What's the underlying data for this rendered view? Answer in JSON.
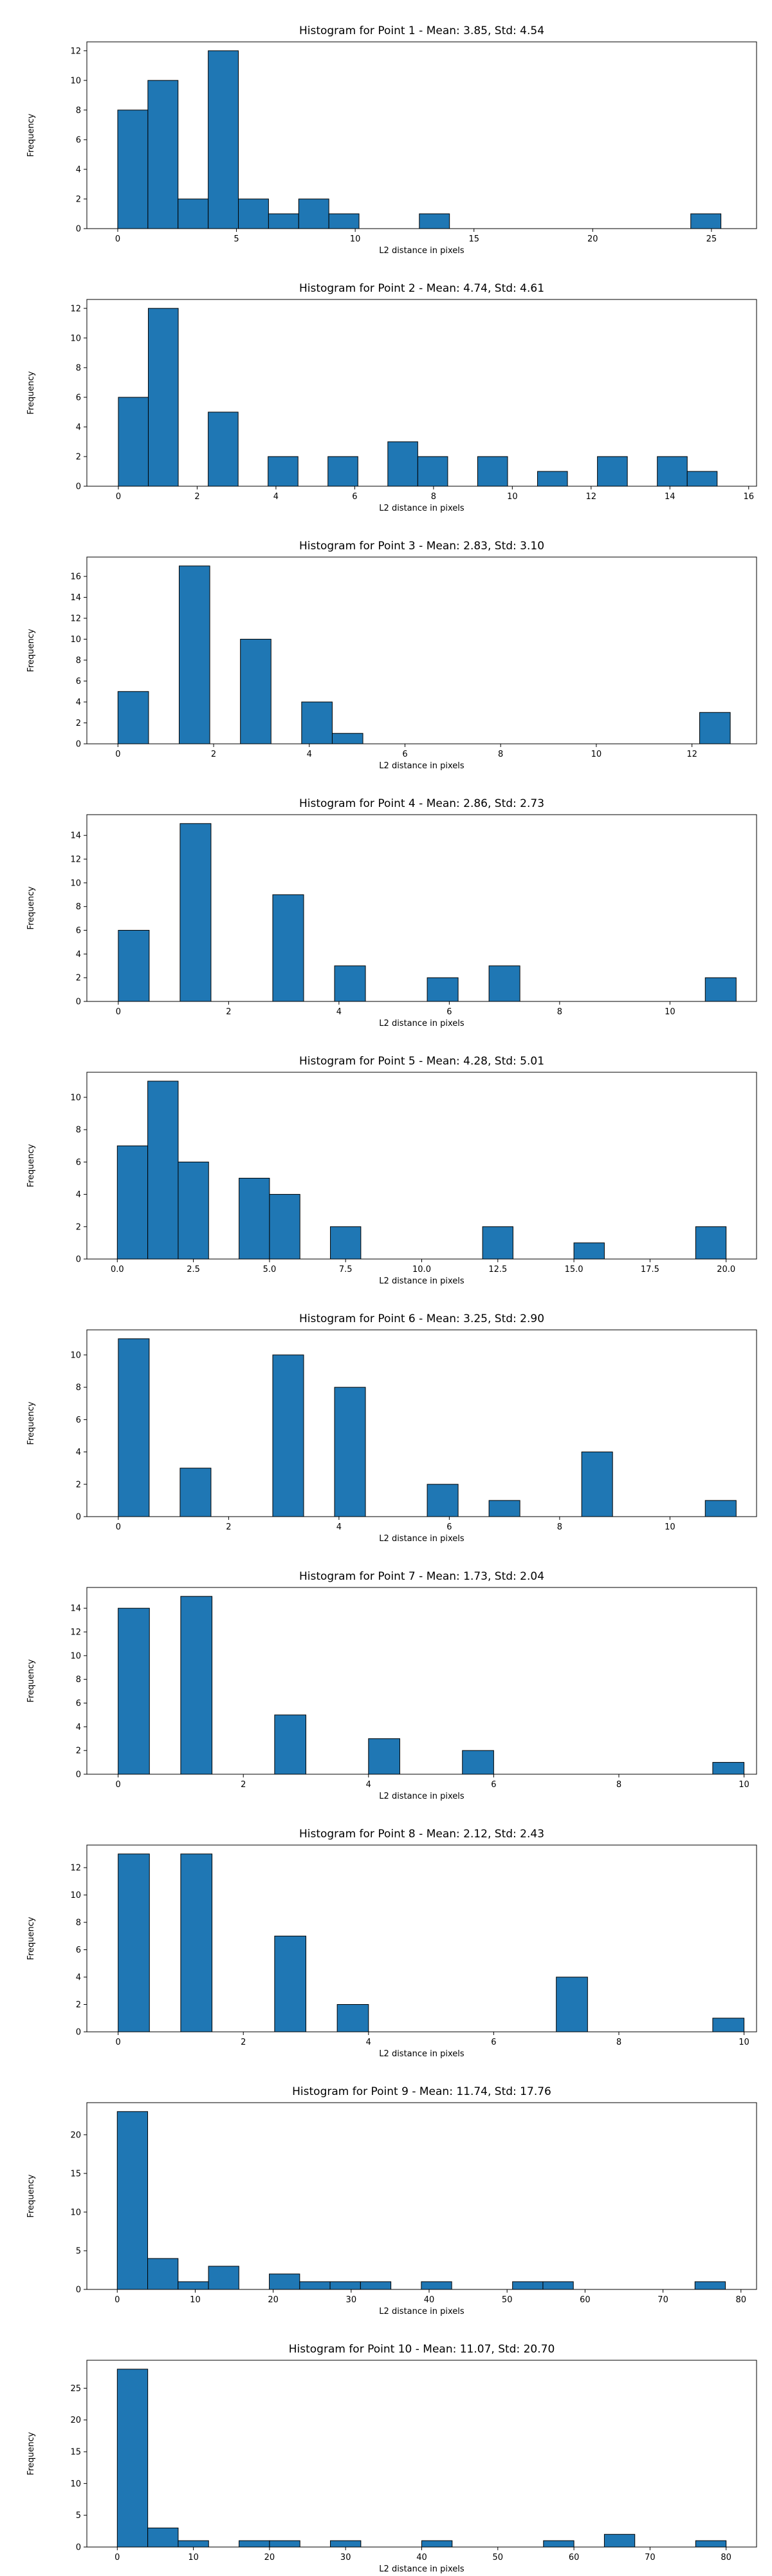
{
  "chart_data": [
    {
      "type": "bar",
      "title": "Histogram for Point 1 - Mean: 3.85, Std: 4.54",
      "xlabel": "L2 distance in pixels",
      "ylabel": "Frequency",
      "xlim": [
        -1.3,
        26.9
      ],
      "ylim": [
        0,
        12.6
      ],
      "xticks": [
        0,
        5,
        10,
        15,
        20,
        25
      ],
      "yticks": [
        0,
        2,
        4,
        6,
        8,
        10,
        12
      ],
      "bar_color": "#1f77b4",
      "bins": [
        {
          "x0": 0.0,
          "x1": 1.27,
          "count": 8
        },
        {
          "x0": 1.27,
          "x1": 2.54,
          "count": 10
        },
        {
          "x0": 2.54,
          "x1": 3.81,
          "count": 2
        },
        {
          "x0": 3.81,
          "x1": 5.08,
          "count": 12
        },
        {
          "x0": 5.08,
          "x1": 6.35,
          "count": 2
        },
        {
          "x0": 6.35,
          "x1": 7.62,
          "count": 1
        },
        {
          "x0": 7.62,
          "x1": 8.89,
          "count": 2
        },
        {
          "x0": 8.89,
          "x1": 10.16,
          "count": 1
        },
        {
          "x0": 12.7,
          "x1": 13.97,
          "count": 1
        },
        {
          "x0": 24.13,
          "x1": 25.4,
          "count": 1
        }
      ]
    },
    {
      "type": "bar",
      "title": "Histogram for Point 2 - Mean: 4.74, Std: 4.61",
      "xlabel": "L2 distance in pixels",
      "ylabel": "Frequency",
      "xlim": [
        -0.8,
        16.2
      ],
      "ylim": [
        0,
        12.6
      ],
      "xticks": [
        0,
        2,
        4,
        6,
        8,
        10,
        12,
        14,
        16
      ],
      "yticks": [
        0,
        2,
        4,
        6,
        8,
        10,
        12
      ],
      "bar_color": "#1f77b4",
      "bins": [
        {
          "x0": 0.0,
          "x1": 0.76,
          "count": 6
        },
        {
          "x0": 0.76,
          "x1": 1.52,
          "count": 12
        },
        {
          "x0": 2.28,
          "x1": 3.04,
          "count": 5
        },
        {
          "x0": 3.8,
          "x1": 4.56,
          "count": 2
        },
        {
          "x0": 5.32,
          "x1": 6.08,
          "count": 2
        },
        {
          "x0": 6.84,
          "x1": 7.6,
          "count": 3
        },
        {
          "x0": 7.6,
          "x1": 8.36,
          "count": 2
        },
        {
          "x0": 9.12,
          "x1": 9.88,
          "count": 2
        },
        {
          "x0": 10.64,
          "x1": 11.4,
          "count": 1
        },
        {
          "x0": 12.16,
          "x1": 12.92,
          "count": 2
        },
        {
          "x0": 13.68,
          "x1": 14.44,
          "count": 2
        },
        {
          "x0": 14.44,
          "x1": 15.2,
          "count": 1
        }
      ]
    },
    {
      "type": "bar",
      "title": "Histogram for Point 3 - Mean: 2.83, Std: 3.10",
      "xlabel": "L2 distance in pixels",
      "ylabel": "Frequency",
      "xlim": [
        -0.65,
        13.35
      ],
      "ylim": [
        0,
        17.85
      ],
      "xticks": [
        0,
        2,
        4,
        6,
        8,
        10,
        12
      ],
      "yticks": [
        0,
        2,
        4,
        6,
        8,
        10,
        12,
        14,
        16
      ],
      "bar_color": "#1f77b4",
      "bins": [
        {
          "x0": 0.0,
          "x1": 0.64,
          "count": 5
        },
        {
          "x0": 1.28,
          "x1": 1.92,
          "count": 17
        },
        {
          "x0": 2.56,
          "x1": 3.2,
          "count": 10
        },
        {
          "x0": 3.84,
          "x1": 4.48,
          "count": 4
        },
        {
          "x0": 4.48,
          "x1": 5.12,
          "count": 1
        },
        {
          "x0": 12.16,
          "x1": 12.8,
          "count": 3
        }
      ]
    },
    {
      "type": "bar",
      "title": "Histogram for Point 4 - Mean: 2.86, Std: 2.73",
      "xlabel": "L2 distance in pixels",
      "ylabel": "Frequency",
      "xlim": [
        -0.57,
        11.57
      ],
      "ylim": [
        0,
        15.75
      ],
      "xticks": [
        0,
        2,
        4,
        6,
        8,
        10
      ],
      "yticks": [
        0,
        2,
        4,
        6,
        8,
        10,
        12,
        14
      ],
      "bar_color": "#1f77b4",
      "bins": [
        {
          "x0": 0.0,
          "x1": 0.56,
          "count": 6
        },
        {
          "x0": 1.12,
          "x1": 1.68,
          "count": 15
        },
        {
          "x0": 2.8,
          "x1": 3.36,
          "count": 9
        },
        {
          "x0": 3.92,
          "x1": 4.48,
          "count": 3
        },
        {
          "x0": 5.6,
          "x1": 6.16,
          "count": 2
        },
        {
          "x0": 6.72,
          "x1": 7.28,
          "count": 3
        },
        {
          "x0": 10.64,
          "x1": 11.2,
          "count": 2
        }
      ]
    },
    {
      "type": "bar",
      "title": "Histogram for Point 5 - Mean: 4.28, Std: 5.01",
      "xlabel": "L2 distance in pixels",
      "ylabel": "Frequency",
      "xlim": [
        -1.0,
        21.0
      ],
      "ylim": [
        0,
        11.55
      ],
      "xticks": [
        0.0,
        2.5,
        5.0,
        7.5,
        10.0,
        12.5,
        15.0,
        17.5,
        20.0
      ],
      "yticks": [
        0,
        2,
        4,
        6,
        8,
        10
      ],
      "bar_color": "#1f77b4",
      "bins": [
        {
          "x0": 0.0,
          "x1": 1.0,
          "count": 7
        },
        {
          "x0": 1.0,
          "x1": 2.0,
          "count": 11
        },
        {
          "x0": 2.0,
          "x1": 3.0,
          "count": 6
        },
        {
          "x0": 4.0,
          "x1": 5.0,
          "count": 5
        },
        {
          "x0": 5.0,
          "x1": 6.0,
          "count": 4
        },
        {
          "x0": 7.0,
          "x1": 8.0,
          "count": 2
        },
        {
          "x0": 12.0,
          "x1": 13.0,
          "count": 2
        },
        {
          "x0": 15.0,
          "x1": 16.0,
          "count": 1
        },
        {
          "x0": 19.0,
          "x1": 20.0,
          "count": 2
        }
      ]
    },
    {
      "type": "bar",
      "title": "Histogram for Point 6 - Mean: 3.25, Std: 2.90",
      "xlabel": "L2 distance in pixels",
      "ylabel": "Frequency",
      "xlim": [
        -0.57,
        11.57
      ],
      "ylim": [
        0,
        11.55
      ],
      "xticks": [
        0,
        2,
        4,
        6,
        8,
        10
      ],
      "yticks": [
        0,
        2,
        4,
        6,
        8,
        10
      ],
      "bar_color": "#1f77b4",
      "bins": [
        {
          "x0": 0.0,
          "x1": 0.56,
          "count": 11
        },
        {
          "x0": 1.12,
          "x1": 1.68,
          "count": 3
        },
        {
          "x0": 2.8,
          "x1": 3.36,
          "count": 10
        },
        {
          "x0": 3.92,
          "x1": 4.48,
          "count": 8
        },
        {
          "x0": 5.6,
          "x1": 6.16,
          "count": 2
        },
        {
          "x0": 6.72,
          "x1": 7.28,
          "count": 1
        },
        {
          "x0": 8.4,
          "x1": 8.96,
          "count": 4
        },
        {
          "x0": 10.64,
          "x1": 11.2,
          "count": 1
        }
      ]
    },
    {
      "type": "bar",
      "title": "Histogram for Point 7 - Mean: 1.73, Std: 2.04",
      "xlabel": "L2 distance in pixels",
      "ylabel": "Frequency",
      "xlim": [
        -0.5,
        10.2
      ],
      "ylim": [
        0,
        15.75
      ],
      "xticks": [
        0,
        2,
        4,
        6,
        8,
        10
      ],
      "yticks": [
        0,
        2,
        4,
        6,
        8,
        10,
        12,
        14
      ],
      "bar_color": "#1f77b4",
      "bins": [
        {
          "x0": 0.0,
          "x1": 0.5,
          "count": 14
        },
        {
          "x0": 1.0,
          "x1": 1.5,
          "count": 15
        },
        {
          "x0": 2.5,
          "x1": 3.0,
          "count": 5
        },
        {
          "x0": 4.0,
          "x1": 4.5,
          "count": 3
        },
        {
          "x0": 5.5,
          "x1": 6.0,
          "count": 2
        },
        {
          "x0": 9.5,
          "x1": 10.0,
          "count": 1
        }
      ]
    },
    {
      "type": "bar",
      "title": "Histogram for Point 8 - Mean: 2.12, Std: 2.43",
      "xlabel": "L2 distance in pixels",
      "ylabel": "Frequency",
      "xlim": [
        -0.5,
        10.2
      ],
      "ylim": [
        0,
        13.65
      ],
      "xticks": [
        0,
        2,
        4,
        6,
        8,
        10
      ],
      "yticks": [
        0,
        2,
        4,
        6,
        8,
        10,
        12
      ],
      "bar_color": "#1f77b4",
      "bins": [
        {
          "x0": 0.0,
          "x1": 0.5,
          "count": 13
        },
        {
          "x0": 1.0,
          "x1": 1.5,
          "count": 13
        },
        {
          "x0": 2.5,
          "x1": 3.0,
          "count": 7
        },
        {
          "x0": 3.5,
          "x1": 4.0,
          "count": 2
        },
        {
          "x0": 7.0,
          "x1": 7.5,
          "count": 4
        },
        {
          "x0": 9.5,
          "x1": 10.0,
          "count": 1
        }
      ]
    },
    {
      "type": "bar",
      "title": "Histogram for Point 9 - Mean: 11.74, Std: 17.76",
      "xlabel": "L2 distance in pixels",
      "ylabel": "Frequency",
      "xlim": [
        -3.9,
        82.0
      ],
      "ylim": [
        0,
        24.15
      ],
      "xticks": [
        0,
        10,
        20,
        30,
        40,
        50,
        60,
        70,
        80
      ],
      "yticks": [
        0,
        5,
        10,
        15,
        20
      ],
      "bar_color": "#1f77b4",
      "bins": [
        {
          "x0": 0.0,
          "x1": 3.9,
          "count": 23
        },
        {
          "x0": 3.9,
          "x1": 7.8,
          "count": 4
        },
        {
          "x0": 7.8,
          "x1": 11.7,
          "count": 1
        },
        {
          "x0": 11.7,
          "x1": 15.6,
          "count": 3
        },
        {
          "x0": 19.5,
          "x1": 23.4,
          "count": 2
        },
        {
          "x0": 23.4,
          "x1": 27.3,
          "count": 1
        },
        {
          "x0": 27.3,
          "x1": 31.2,
          "count": 1
        },
        {
          "x0": 31.2,
          "x1": 35.1,
          "count": 1
        },
        {
          "x0": 39.0,
          "x1": 42.9,
          "count": 1
        },
        {
          "x0": 50.7,
          "x1": 54.6,
          "count": 1
        },
        {
          "x0": 54.6,
          "x1": 58.5,
          "count": 1
        },
        {
          "x0": 74.1,
          "x1": 78.0,
          "count": 1
        }
      ]
    },
    {
      "type": "bar",
      "title": "Histogram for Point 10 - Mean: 11.07, Std: 20.70",
      "xlabel": "L2 distance in pixels",
      "ylabel": "Frequency",
      "xlim": [
        -4.0,
        84.0
      ],
      "ylim": [
        0,
        29.4
      ],
      "xticks": [
        0,
        10,
        20,
        30,
        40,
        50,
        60,
        70,
        80
      ],
      "yticks": [
        0,
        5,
        10,
        15,
        20,
        25
      ],
      "bar_color": "#1f77b4",
      "bins": [
        {
          "x0": 0.0,
          "x1": 4.0,
          "count": 28
        },
        {
          "x0": 4.0,
          "x1": 8.0,
          "count": 3
        },
        {
          "x0": 8.0,
          "x1": 12.0,
          "count": 1
        },
        {
          "x0": 16.0,
          "x1": 20.0,
          "count": 1
        },
        {
          "x0": 20.0,
          "x1": 24.0,
          "count": 1
        },
        {
          "x0": 28.0,
          "x1": 32.0,
          "count": 1
        },
        {
          "x0": 40.0,
          "x1": 44.0,
          "count": 1
        },
        {
          "x0": 56.0,
          "x1": 60.0,
          "count": 1
        },
        {
          "x0": 64.0,
          "x1": 68.0,
          "count": 2
        },
        {
          "x0": 76.0,
          "x1": 80.0,
          "count": 1
        }
      ]
    }
  ]
}
